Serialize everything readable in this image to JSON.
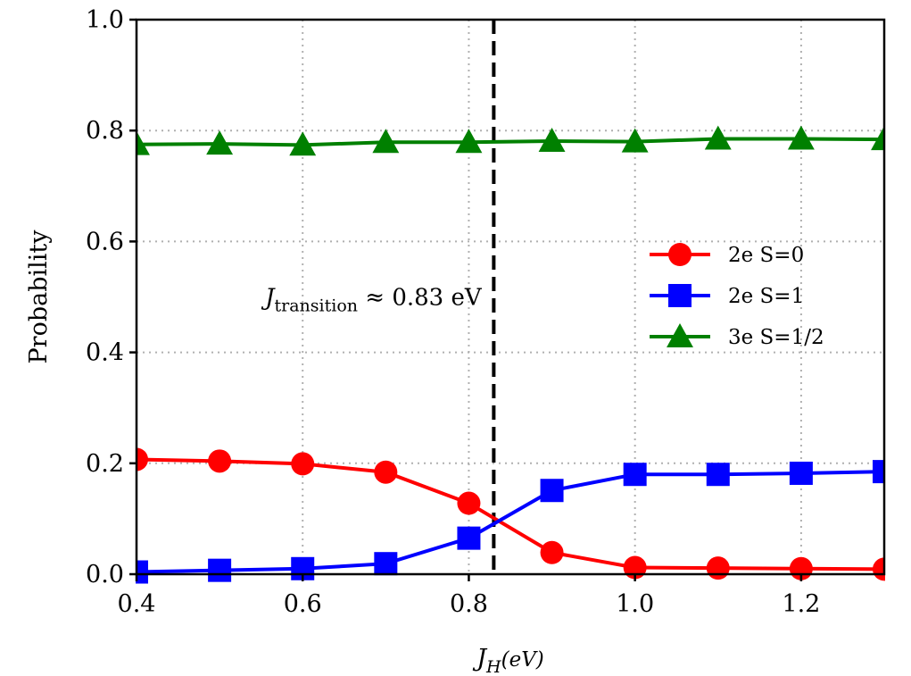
{
  "chart_data": {
    "type": "line",
    "title": "",
    "xlabel": "J_H (eV)",
    "xlabel_main": "J",
    "xlabel_sub": "H",
    "xlabel_unit": "(eV)",
    "ylabel": "Probability",
    "xlim": [
      0.4,
      1.3
    ],
    "ylim": [
      0.0,
      1.0
    ],
    "x_ticks": [
      0.4,
      0.6,
      0.8,
      1.0,
      1.2
    ],
    "x_tick_labels": [
      "0.4",
      "0.6",
      "0.8",
      "1.0",
      "1.2"
    ],
    "y_ticks": [
      0.0,
      0.2,
      0.4,
      0.6,
      0.8,
      1.0
    ],
    "y_tick_labels": [
      "0.0",
      "0.2",
      "0.4",
      "0.6",
      "0.8",
      "1.0"
    ],
    "grid": true,
    "legend_position": "center-right",
    "x": [
      0.4,
      0.5,
      0.6,
      0.7,
      0.8,
      0.9,
      1.0,
      1.1,
      1.2,
      1.3
    ],
    "series": [
      {
        "name": "2e S=0",
        "color": "#ff0000",
        "marker": "circle",
        "values": [
          0.207,
          0.204,
          0.199,
          0.184,
          0.128,
          0.039,
          0.012,
          0.011,
          0.01,
          0.009
        ]
      },
      {
        "name": "2e S=1",
        "color": "#0000ff",
        "marker": "square",
        "values": [
          0.004,
          0.007,
          0.01,
          0.019,
          0.065,
          0.151,
          0.18,
          0.18,
          0.182,
          0.185
        ]
      },
      {
        "name": "3e S=1/2",
        "color": "#008000",
        "marker": "triangle",
        "values": [
          0.775,
          0.776,
          0.774,
          0.779,
          0.779,
          0.781,
          0.78,
          0.785,
          0.785,
          0.784
        ]
      }
    ],
    "vline": {
      "x": 0.83,
      "style": "dashed",
      "color": "#000000"
    },
    "annotation": {
      "main": "J",
      "sub": "transition",
      "rest": " ≈ 0.83 eV",
      "x": 0.83,
      "y": 0.5
    }
  }
}
